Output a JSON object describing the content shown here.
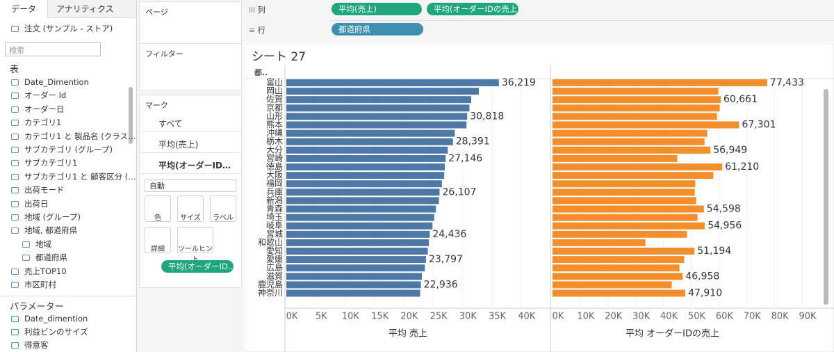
{
  "sidebar": {
    "tabs": [
      "データ",
      "アナリティクス"
    ],
    "datasource": "注文 (サンプル - ストア)",
    "search_placeholder": "検索",
    "tables_heading": "表",
    "fields": [
      "Date_Dimention",
      "オーダー Id",
      "オーダー日",
      "カテゴリ1",
      "カテゴリ1 と 製品名 (クラス…",
      "サブカテゴリ (グループ)",
      "サブカテゴリ1",
      "サブカテゴリ1 と 顧客区分 (…",
      "出荷モード",
      "出荷日",
      "地域 (グループ)",
      "地域, 都道府県",
      "地域",
      "都道府県",
      "売上TOP10",
      "市区町村"
    ],
    "parameters_heading": "パラメーター",
    "parameters": [
      "Date_dimention",
      "利益ビンのサイズ",
      "得意客"
    ]
  },
  "shelves": {
    "pages": "ページ",
    "filters": "フィルター",
    "columns_label": "列",
    "columns": [
      "平均(売上)",
      "平均(オーダーIDの売上)"
    ],
    "rows_label": "行",
    "rows": [
      "都道府県"
    ]
  },
  "marks": {
    "title": "マーク",
    "cards": [
      "すべて",
      "平均(売上)",
      "平均(オーダーID…"
    ],
    "mark_type": "自動",
    "buttons": [
      "色",
      "サイズ",
      "ラベル",
      "詳細",
      "ツールヒント"
    ],
    "pill": "平均(オーダーID.."
  },
  "chart_data": {
    "type": "bar",
    "orientation": "horizontal",
    "title": "シート 27",
    "row_header": "都..",
    "categories": [
      "富山",
      "岡山",
      "佐賀",
      "京都",
      "山形",
      "熊本",
      "沖縄",
      "栃木",
      "大分",
      "宮崎",
      "徳島",
      "大阪",
      "福岡",
      "兵庫",
      "新潟",
      "青森",
      "埼玉",
      "岐阜",
      "宮城",
      "和歌山",
      "愛知",
      "愛媛",
      "広島",
      "滋賀",
      "鹿児島",
      "神奈川"
    ],
    "series": [
      {
        "name": "平均 売上",
        "color": "#4e79a7",
        "values": [
          36219,
          32800,
          31500,
          31200,
          30818,
          30700,
          28700,
          28391,
          27500,
          27146,
          27000,
          26900,
          26500,
          26107,
          26000,
          25500,
          25200,
          24900,
          24436,
          24300,
          24100,
          23797,
          23600,
          23100,
          22936,
          22800
        ],
        "value_labels": [
          "36,219",
          null,
          null,
          null,
          "30,818",
          null,
          null,
          "28,391",
          null,
          "27,146",
          null,
          null,
          null,
          "26,107",
          null,
          null,
          null,
          null,
          "24,436",
          null,
          null,
          "23,797",
          null,
          null,
          "22,936",
          null
        ],
        "xlim": [
          0,
          45000
        ],
        "xticks": [
          {
            "value": 0,
            "label": "0K"
          },
          {
            "value": 5000,
            "label": "5K"
          },
          {
            "value": 10000,
            "label": "10K"
          },
          {
            "value": 15000,
            "label": "15K"
          },
          {
            "value": 20000,
            "label": "20K"
          },
          {
            "value": 25000,
            "label": "25K"
          },
          {
            "value": 30000,
            "label": "30K"
          },
          {
            "value": 35000,
            "label": "35K"
          },
          {
            "value": 40000,
            "label": "40K"
          }
        ]
      },
      {
        "name": "平均 オーダーIDの売上",
        "color": "#f28e2b",
        "values": [
          77433,
          59800,
          60661,
          60300,
          59300,
          67301,
          55800,
          54800,
          56949,
          45000,
          61210,
          58000,
          51500,
          51300,
          51800,
          54598,
          52300,
          54956,
          48500,
          33500,
          51194,
          47500,
          45800,
          46958,
          43000,
          47910
        ],
        "value_labels": [
          "77,433",
          null,
          "60,661",
          null,
          null,
          "67,301",
          null,
          null,
          "56,949",
          null,
          "61,210",
          null,
          null,
          null,
          null,
          "54,598",
          null,
          "54,956",
          null,
          null,
          "51,194",
          null,
          null,
          "46,958",
          null,
          "47,910"
        ],
        "xlim": [
          0,
          94000
        ],
        "xticks": [
          {
            "value": 0,
            "label": "0K"
          },
          {
            "value": 10000,
            "label": "10K"
          },
          {
            "value": 20000,
            "label": "20K"
          },
          {
            "value": 30000,
            "label": "30K"
          },
          {
            "value": 40000,
            "label": "40K"
          },
          {
            "value": 50000,
            "label": "50K"
          },
          {
            "value": 60000,
            "label": "60K"
          },
          {
            "value": 70000,
            "label": "70K"
          },
          {
            "value": 80000,
            "label": "80K"
          },
          {
            "value": 90000,
            "label": "90K"
          }
        ]
      }
    ]
  }
}
